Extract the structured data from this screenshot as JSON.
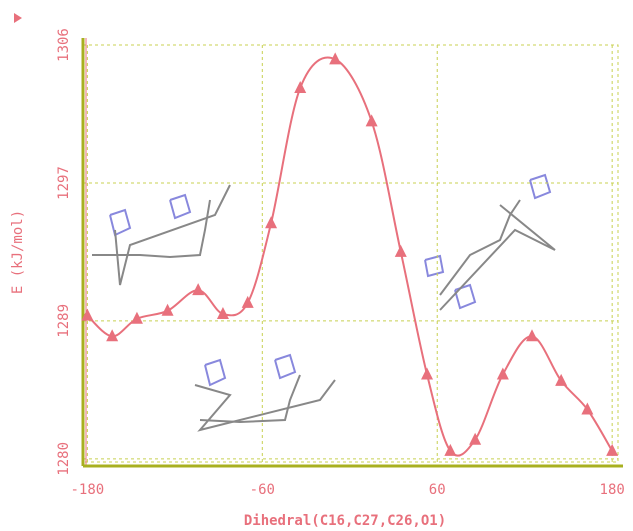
{
  "chart_data": {
    "type": "line",
    "x_label": "Dihedral(C16,C27,C26,O1)",
    "y_label": "E (kJ/mol)",
    "x": [
      -180,
      -163,
      -146,
      -125,
      -104,
      -87,
      -70,
      -54,
      -34,
      -10,
      15,
      35,
      53,
      69,
      86,
      105,
      125,
      145,
      163,
      180
    ],
    "series": [
      {
        "color": "#e8707c",
        "values": [
          1289.0,
          1287.7,
          1288.8,
          1289.3,
          1290.6,
          1289.1,
          1289.8,
          1294.8,
          1303.3,
          1305.1,
          1301.2,
          1293.0,
          1285.3,
          1280.5,
          1281.2,
          1285.3,
          1287.7,
          1284.9,
          1283.1,
          1280.5
        ]
      }
    ],
    "xlim": [
      -183,
      184
    ],
    "ylim": [
      1279.8,
      1306
    ],
    "xticks": [
      -180,
      -60,
      60,
      180
    ],
    "yticks": [
      1280,
      {
        "value": 1288.67,
        "label": "1289"
      },
      {
        "value": 1297.33,
        "label": "1297"
      },
      1306
    ],
    "grid": true
  }
}
